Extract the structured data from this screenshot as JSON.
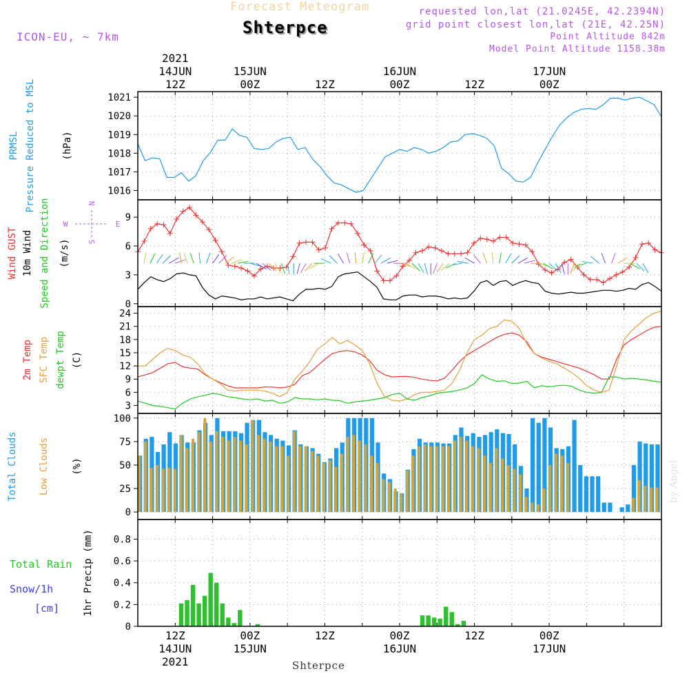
{
  "header": {
    "subtitle": "Forecast Meteogram",
    "station": "Shterpce",
    "model": "ICON-EU, ~ 7km",
    "requested": "requested lon,lat (21.0245E, 42.2394N)",
    "grid_point": "grid point closest lon,lat (21E, 42.25N)",
    "point_alt": "Point Altitude 842m",
    "model_alt": "Model Point Altitude 1158.38m",
    "footer_station": "Shterpce",
    "watermark": "by Angel"
  },
  "time_axis": {
    "top_labels": [
      {
        "t": 12,
        "lines": [
          "2021",
          "14JUN",
          "12Z"
        ]
      },
      {
        "t": 24,
        "lines": [
          "15JUN",
          "00Z"
        ]
      },
      {
        "t": 36,
        "lines": [
          "12Z"
        ]
      },
      {
        "t": 48,
        "lines": [
          "16JUN",
          "00Z"
        ]
      },
      {
        "t": 60,
        "lines": [
          "12Z"
        ]
      },
      {
        "t": 72,
        "lines": [
          "17JUN",
          "00Z"
        ]
      }
    ],
    "bottom_labels": [
      {
        "t": 12,
        "lines": [
          "12Z",
          "14JUN",
          "2021"
        ]
      },
      {
        "t": 24,
        "lines": [
          "00Z",
          "15JUN"
        ]
      },
      {
        "t": 36,
        "lines": [
          "12Z"
        ]
      },
      {
        "t": 48,
        "lines": [
          "00Z",
          "16JUN"
        ]
      },
      {
        "t": 60,
        "lines": [
          "12Z"
        ]
      },
      {
        "t": 72,
        "lines": [
          "00Z",
          "17JUN"
        ]
      }
    ]
  },
  "chart_data": [
    {
      "id": "pressure",
      "type": "line",
      "ylabels": [
        {
          "text": "PRMSL",
          "color": "#1e9be9"
        },
        {
          "text": "Pressure Reduced to MSL",
          "color": "#1e9be9"
        },
        {
          "text": "(hPa)",
          "color": "#000000"
        }
      ],
      "ylim": [
        1015.5,
        1021.3
      ],
      "yticks": [
        1016,
        1017,
        1018,
        1019,
        1020,
        1021
      ],
      "series": [
        {
          "name": "PRMSL",
          "color": "#1e9be9",
          "values": [
            1018.5,
            1017.6,
            1017.75,
            1017.7,
            1016.7,
            1016.7,
            1016.95,
            1016.5,
            1016.8,
            1017.6,
            1018.05,
            1018.7,
            1018.7,
            1019.3,
            1018.95,
            1018.85,
            1018.25,
            1018.2,
            1018.25,
            1018.6,
            1018.8,
            1018.85,
            1018.2,
            1018.3,
            1017.7,
            1017.3,
            1016.8,
            1016.4,
            1016.3,
            1016.1,
            1015.9,
            1016,
            1016.6,
            1017.2,
            1017.8,
            1018,
            1018.2,
            1018.1,
            1018.3,
            1018.2,
            1018,
            1018.1,
            1018.3,
            1018.6,
            1018.65,
            1019,
            1019.05,
            1018.95,
            1018.8,
            1018.4,
            1017.2,
            1016.9,
            1016.5,
            1016.45,
            1016.7,
            1017.5,
            1018.2,
            1018.9,
            1019.5,
            1019.9,
            1020.2,
            1020.35,
            1020.4,
            1020.35,
            1020.6,
            1020.95,
            1020.95,
            1020.85,
            1020.95,
            1021,
            1020.8,
            1020.6,
            1019.95
          ]
        }
      ]
    },
    {
      "id": "wind",
      "type": "line",
      "ylabels": [
        {
          "text": "Wind GUST",
          "color": "#e83232"
        },
        {
          "text": "10m Wind",
          "color": "#000000"
        },
        {
          "text": "Speed and Direction",
          "color": "#1ec81e"
        },
        {
          "text": "(m/s)",
          "color": "#000000"
        }
      ],
      "compass": {
        "n": "N",
        "s": "S",
        "w": "W",
        "e": "E"
      },
      "ylim": [
        -0.3,
        10.8
      ],
      "yticks": [
        0,
        3,
        6,
        9
      ],
      "series": [
        {
          "name": "Wind GUST",
          "color": "#e83232",
          "marker": "+",
          "values": [
            5.4,
            6.5,
            7.8,
            8.3,
            8.2,
            7.3,
            8.8,
            9.6,
            10,
            9.2,
            8.5,
            7.7,
            6.6,
            5.4,
            4,
            3.9,
            3.7,
            3.4,
            2.9,
            3.6,
            3.9,
            3.7,
            3.7,
            3.8,
            4.9,
            6.3,
            6.4,
            6.4,
            5.6,
            5.8,
            7.8,
            8.4,
            8.4,
            8.3,
            7.3,
            6.1,
            5.5,
            3.4,
            2.4,
            2.4,
            2.9,
            3.9,
            4.5,
            5.3,
            5.5,
            5.9,
            5.8,
            5.5,
            5.2,
            5.2,
            5.2,
            5.3,
            6.3,
            6.8,
            6.7,
            6.5,
            6.9,
            6.9,
            6.3,
            6.2,
            6.1,
            5.4,
            4.1,
            3.5,
            3.2,
            3.6,
            4.3,
            4.6,
            3.8,
            3,
            2.5,
            2.5,
            2.2,
            2.6,
            3,
            3.3,
            3.8,
            4.8,
            6.2,
            6.3,
            5.6,
            5.3
          ]
        },
        {
          "name": "10m Wind",
          "color": "#000000",
          "values": [
            1.5,
            2.2,
            2.8,
            2.5,
            2.3,
            2.6,
            3.1,
            3.2,
            3,
            2.9,
            1.7,
            0.9,
            0.5,
            0.8,
            0.7,
            0.6,
            0.4,
            0.5,
            0.5,
            0.7,
            0.5,
            0.6,
            0.7,
            0.5,
            0.3,
            1,
            1.5,
            1.5,
            1.6,
            1.5,
            1.8,
            2.8,
            3.1,
            3.2,
            3.3,
            2.8,
            2.3,
            1.7,
            0.5,
            0.4,
            0.4,
            0.8,
            0.9,
            0.9,
            0.7,
            0.8,
            0.8,
            0.7,
            0.5,
            0.6,
            0.5,
            0.6,
            1.3,
            2.2,
            2.4,
            1.9,
            2.3,
            2.4,
            1.9,
            2.2,
            2.4,
            2.2,
            2.1,
            1.3,
            1.1,
            1,
            1.1,
            1.2,
            1.1,
            1.1,
            1.2,
            1.3,
            1.4,
            1.4,
            1.3,
            1.4,
            1.6,
            1.5,
            2,
            2.2,
            1.8,
            1.3
          ]
        },
        {
          "name": "Speed and Direction",
          "color": "#1ec81e",
          "arrow_spacing_h": 1,
          "arrow_dir": [
            180,
            190,
            205,
            215,
            225,
            240,
            250,
            170,
            160,
            160,
            175,
            200,
            215,
            225,
            235,
            250,
            260,
            270,
            285,
            300,
            310,
            315,
            330,
            340,
            350,
            0,
            15,
            30,
            45,
            60,
            90,
            115,
            135,
            150,
            165,
            175,
            190,
            205,
            220,
            240,
            255,
            270,
            285,
            300,
            315,
            330,
            345,
            0,
            20,
            35,
            50,
            65,
            80,
            100,
            120,
            140,
            160,
            175,
            190,
            210,
            225,
            240,
            255,
            270,
            285,
            300,
            315,
            330,
            345,
            0,
            20,
            45,
            75,
            100,
            130,
            160,
            200,
            240,
            270,
            300,
            315,
            330
          ],
          "arrow_y": 4.2
        }
      ]
    },
    {
      "id": "temperature",
      "type": "line",
      "ylabels": [
        {
          "text": "2m Temp",
          "color": "#e83232"
        },
        {
          "text": "SFC Temp",
          "color": "#e6a03c"
        },
        {
          "text": "dewpt Temp",
          "color": "#1ec81e"
        },
        {
          "text": "(C)",
          "color": "#000000"
        }
      ],
      "ylim": [
        1.2,
        25.5
      ],
      "yticks": [
        3,
        6,
        9,
        12,
        15,
        18,
        21,
        24
      ],
      "series": [
        {
          "name": "2m Temp",
          "color": "#e83232",
          "values": [
            9.5,
            10,
            10.5,
            11.5,
            12.5,
            12.8,
            11.8,
            11.5,
            11.3,
            10,
            9,
            8.2,
            7.5,
            7,
            7,
            7,
            7,
            7.2,
            7.2,
            7,
            7.2,
            7.8,
            9.8,
            10.5,
            12,
            13.5,
            14.8,
            15.3,
            15.5,
            15.2,
            14.5,
            13.2,
            11,
            10,
            9.5,
            9.6,
            9.6,
            9.4,
            9,
            8.7,
            8.6,
            9.2,
            11,
            13,
            14.5,
            15.5,
            16.5,
            17.5,
            18.5,
            19.2,
            19.5,
            19,
            17.5,
            14.8,
            14,
            13.5,
            13,
            12.5,
            12,
            11.5,
            10.8,
            10,
            9,
            9,
            13.5,
            16.8,
            18,
            19,
            20,
            20.8,
            21
          ]
        },
        {
          "name": "SFC Temp",
          "color": "#e6a03c",
          "values": [
            12,
            12,
            13.5,
            15,
            16,
            15.5,
            14.5,
            14,
            12.5,
            10.2,
            9,
            8,
            6.5,
            6.3,
            6.5,
            6.5,
            6.5,
            6.3,
            5.8,
            5,
            6,
            9,
            10.8,
            13,
            15.8,
            17,
            18.5,
            17,
            17.8,
            16.8,
            15.5,
            12.5,
            8,
            5,
            4.2,
            4,
            4.5,
            5.5,
            6,
            6,
            6.2,
            6.5,
            8,
            11,
            15,
            18,
            19,
            20.5,
            21,
            22.5,
            22.2,
            20.5,
            17,
            14.8,
            13.8,
            13,
            12.5,
            11.5,
            10.5,
            9.2,
            7.5,
            6.5,
            6,
            6.5,
            12,
            18,
            20,
            21.5,
            23,
            24,
            24.5
          ]
        },
        {
          "name": "dewpt Temp",
          "color": "#1ec81e",
          "values": [
            4,
            3.5,
            3,
            2.8,
            2.5,
            2.2,
            3.5,
            4.5,
            5,
            5.3,
            5.8,
            5.5,
            5,
            4.8,
            4.5,
            4.3,
            4.5,
            4,
            4.2,
            3.5,
            3.8,
            4.8,
            4.5,
            4.5,
            4.3,
            4.5,
            4.2,
            4.1,
            3.5,
            3.8,
            4,
            4.2,
            4.5,
            4.8,
            5.5,
            5.8,
            4.5,
            4.2,
            4.8,
            5.2,
            5.8,
            6,
            6.2,
            6.5,
            7,
            8,
            10,
            9,
            8.5,
            8.6,
            8,
            8.1,
            8.5,
            7,
            7.5,
            7.2,
            7.5,
            7.6,
            7.4,
            6.5,
            6,
            5.8,
            6,
            9.5,
            9.5,
            9,
            9.2,
            9,
            8.8,
            8.5,
            8.3
          ]
        }
      ]
    },
    {
      "id": "clouds",
      "type": "bar",
      "ylabels": [
        {
          "text": "Total Clouds",
          "color": "#1e9be9"
        },
        {
          "text": "Low Clouds",
          "color": "#e6a03c"
        },
        {
          "text": "(%)",
          "color": "#000000"
        }
      ],
      "ylim": [
        -8,
        105
      ],
      "yticks": [
        0,
        25,
        50,
        75,
        100
      ],
      "series": [
        {
          "name": "Total Clouds",
          "color": "#1e9be9",
          "values": [
            60,
            78,
            80,
            64,
            72,
            85,
            73,
            82,
            74,
            74,
            87,
            95,
            82,
            100,
            86,
            86,
            86,
            84,
            95,
            98,
            98,
            85,
            82,
            78,
            76,
            71,
            87,
            72,
            70,
            68,
            62,
            53,
            57,
            68,
            74,
            100,
            100,
            100,
            100,
            100,
            74,
            41,
            35,
            22,
            20,
            45,
            67,
            78,
            74,
            74,
            74,
            73,
            73,
            82,
            90,
            81,
            84,
            80,
            82,
            85,
            88,
            84,
            83,
            72,
            49,
            25,
            100,
            95,
            100,
            90,
            68,
            67,
            70,
            98,
            50,
            38,
            38,
            38,
            10,
            10,
            0,
            5,
            8,
            50,
            75,
            73,
            72,
            72
          ]
        },
        {
          "name": "Low Clouds",
          "color": "#d4a437",
          "values": [
            60,
            75,
            47,
            50,
            46,
            47,
            46,
            82,
            68,
            78,
            85,
            100,
            75,
            86,
            80,
            76,
            80,
            76,
            72,
            98,
            82,
            78,
            75,
            70,
            70,
            60,
            86,
            70,
            70,
            65,
            60,
            52,
            55,
            48,
            62,
            80,
            82,
            76,
            72,
            60,
            52,
            35,
            32,
            25,
            20,
            44,
            60,
            70,
            72,
            70,
            70,
            70,
            70,
            76,
            80,
            76,
            70,
            68,
            60,
            52,
            68,
            57,
            50,
            46,
            40,
            16,
            10,
            8,
            25,
            50,
            62,
            60,
            52,
            0,
            0,
            0,
            0,
            0,
            0,
            0,
            0,
            0,
            0,
            15,
            34,
            28,
            26,
            26
          ]
        }
      ]
    },
    {
      "id": "precip",
      "type": "bar",
      "ylabels": [
        {
          "text": "Total  Rain",
          "color": "#1ec81e"
        },
        {
          "text": "Snow/1h",
          "color": "#3c3cdc"
        },
        {
          "text": "[cm]",
          "color": "#3c3cdc"
        },
        {
          "text": "1hr Precip (mm)",
          "color": "#000000"
        }
      ],
      "ylim": [
        0,
        0.98
      ],
      "yticks": [
        0,
        0.2,
        0.4,
        0.6,
        0.8
      ],
      "series": [
        {
          "name": "Total Rain",
          "color": "#2ec02e",
          "values": [
            0,
            0,
            0,
            0,
            0,
            0,
            0,
            0.21,
            0.24,
            0.38,
            0.21,
            0.28,
            0.49,
            0.4,
            0.21,
            0.08,
            0.03,
            0.15,
            0,
            0,
            0.02,
            0,
            0,
            0,
            0,
            0,
            0,
            0,
            0,
            0,
            0,
            0,
            0,
            0,
            0,
            0,
            0,
            0,
            0,
            0,
            0,
            0,
            0,
            0,
            0,
            0,
            0,
            0,
            0.1,
            0.1,
            0.08,
            0.07,
            0.18,
            0.13,
            0.02,
            0.05,
            0,
            0,
            0,
            0,
            0,
            0,
            0,
            0,
            0,
            0,
            0,
            0,
            0,
            0,
            0,
            0,
            0,
            0,
            0,
            0,
            0,
            0,
            0,
            0,
            0,
            0,
            0,
            0,
            0,
            0,
            0,
            0,
            0
          ]
        }
      ]
    }
  ]
}
